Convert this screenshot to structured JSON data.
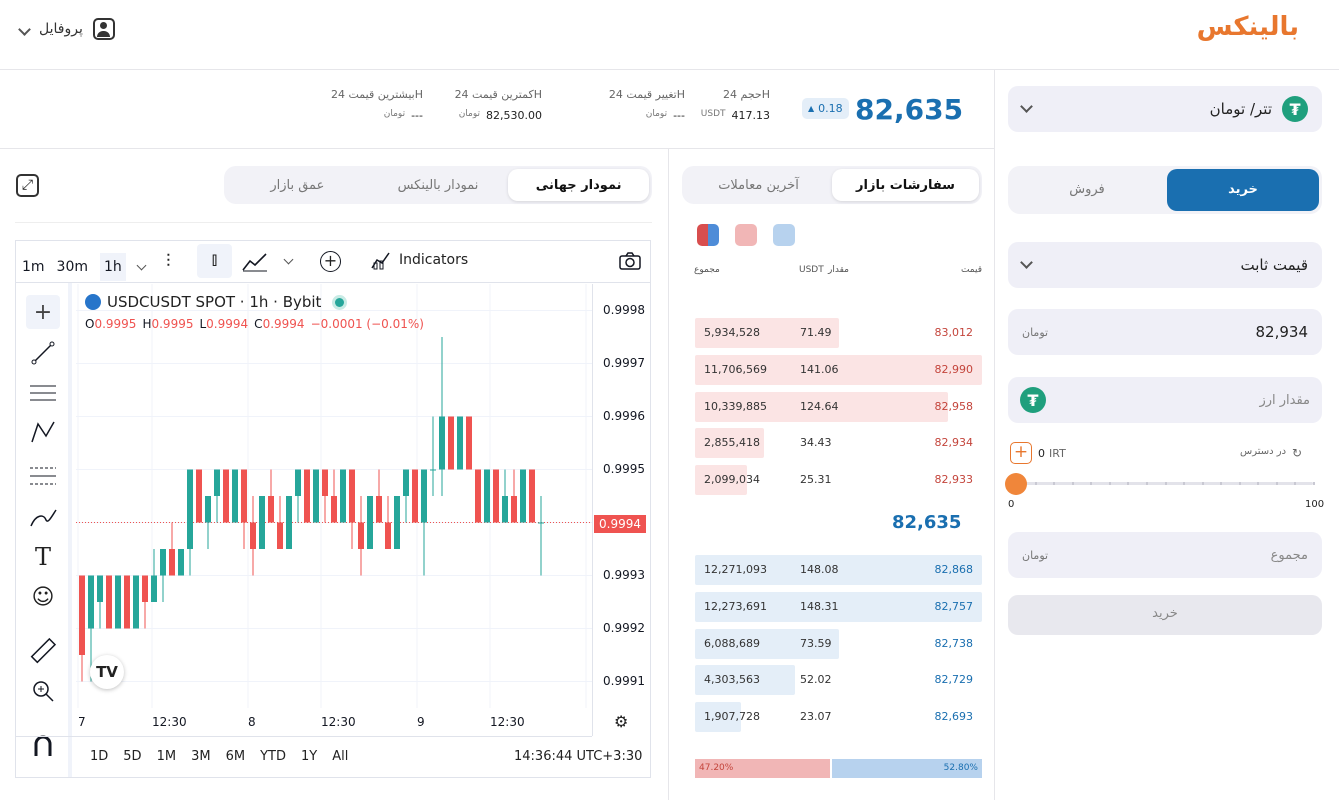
{
  "header": {
    "logo_text": "بالینکس",
    "profile_label": "پروفایل"
  },
  "market": {
    "pair": "تتر/ تومان",
    "price": "82,635",
    "currency": "تومان",
    "change": "0.18",
    "stats": [
      {
        "label": "حجم 24H",
        "value": "417.13",
        "unit": "USDT"
      },
      {
        "label": "تغییر قیمت 24H",
        "value": "---",
        "unit": "تومان"
      },
      {
        "label": "کمترین قیمت 24H",
        "value": "82,530.00",
        "unit": "تومان"
      },
      {
        "label": "بیشترین قیمت 24H",
        "value": "---",
        "unit": "تومان"
      }
    ]
  },
  "chart_tabs": [
    "نمودار جهانی",
    "نمودار بالینکس",
    "عمق بازار"
  ],
  "orderbook_tabs": [
    "سفارشات بازار",
    "آخرین معاملات"
  ],
  "orderbook": {
    "headers": {
      "price": "قیمت",
      "amount": "مقدار",
      "amount_unit": "USDT",
      "total": "مجموع"
    },
    "asks": [
      {
        "price": "83,012",
        "amount": "71.49",
        "total": "5,934,528",
        "depth": 0.5
      },
      {
        "price": "82,990",
        "amount": "141.06",
        "total": "11,706,569",
        "depth": 1.0
      },
      {
        "price": "82,958",
        "amount": "124.64",
        "total": "10,339,885",
        "depth": 0.88
      },
      {
        "price": "82,934",
        "amount": "34.43",
        "total": "2,855,418",
        "depth": 0.24
      },
      {
        "price": "82,933",
        "amount": "25.31",
        "total": "2,099,034",
        "depth": 0.18
      }
    ],
    "mid_price": "82,635",
    "bids": [
      {
        "price": "82,868",
        "amount": "148.08",
        "total": "12,271,093",
        "depth": 1.0
      },
      {
        "price": "82,757",
        "amount": "148.31",
        "total": "12,273,691",
        "depth": 1.0
      },
      {
        "price": "82,738",
        "amount": "73.59",
        "total": "6,088,689",
        "depth": 0.5
      },
      {
        "price": "82,729",
        "amount": "52.02",
        "total": "4,303,563",
        "depth": 0.35
      },
      {
        "price": "82,693",
        "amount": "23.07",
        "total": "1,907,728",
        "depth": 0.16
      }
    ],
    "sell_ratio": "47.20%",
    "buy_ratio": "52.80%",
    "sell_fraction": 0.472,
    "colors": {
      "ask": "#c4453c",
      "bid": "#1a6fb0",
      "ask_bg": "#fbe4e4",
      "bid_bg": "#e4eef8"
    }
  },
  "trade": {
    "buy_label": "خرید",
    "sell_label": "فروش",
    "order_type": "قیمت ثابت",
    "price_value": "82,934",
    "amount_placeholder": "مقدار ارز",
    "available_label": "در دسترس",
    "available_value": "0",
    "available_unit": "IRT",
    "slider_min": "0",
    "slider_max": "100",
    "slider_value": 0,
    "total_placeholder": "مجموع",
    "submit_label": "خرید",
    "accent": "#1a6fb0"
  },
  "tv": {
    "intervals": [
      "1m",
      "30m",
      "1h"
    ],
    "indicators_label": "Indicators",
    "symbol": "USDCUSDT SPOT · 1h · Bybit",
    "ohlc": {
      "o_label": "O",
      "o": "0.9995",
      "h_label": "H",
      "h": "0.9995",
      "l_label": "L",
      "l": "0.9994",
      "c_label": "C",
      "c": "0.9994",
      "chg": "−0.0001 (−0.01%)"
    },
    "last_price": "0.9994",
    "ranges": [
      "1D",
      "5D",
      "1M",
      "3M",
      "6M",
      "YTD",
      "1Y",
      "All"
    ],
    "clock": "14:36:44 UTC+3:30",
    "up_color": "#26a69a",
    "down_color": "#ef5350"
  },
  "chart_data": {
    "type": "candlestick",
    "y_ticks": [
      "0.9998",
      "0.9997",
      "0.9996",
      "0.9995",
      "0.9994",
      "0.9993",
      "0.9992",
      "0.9991"
    ],
    "x_ticks": [
      "7",
      "12:30",
      "8",
      "12:30",
      "9",
      "12:30"
    ],
    "ylim": [
      0.99905,
      0.99985
    ]
  }
}
